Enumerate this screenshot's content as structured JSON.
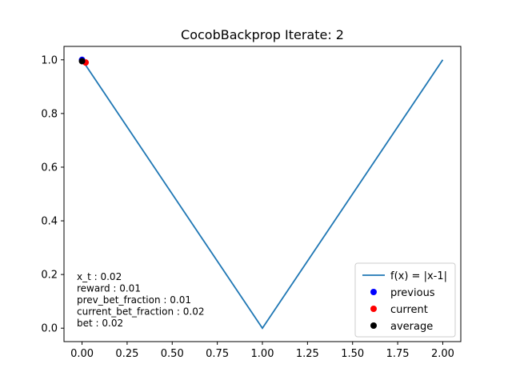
{
  "chart_data": {
    "type": "line",
    "title": "CocobBackprop Iterate: 2",
    "xlabel": "",
    "ylabel": "",
    "xlim": [
      -0.1,
      2.1
    ],
    "ylim": [
      -0.05,
      1.05
    ],
    "x_ticks": [
      "0.00",
      "0.25",
      "0.50",
      "0.75",
      "1.00",
      "1.25",
      "1.50",
      "1.75",
      "2.00"
    ],
    "x_tick_values": [
      0,
      0.25,
      0.5,
      0.75,
      1.0,
      1.25,
      1.5,
      1.75,
      2.0
    ],
    "y_ticks": [
      "0.0",
      "0.2",
      "0.4",
      "0.6",
      "0.8",
      "1.0"
    ],
    "y_tick_values": [
      0,
      0.2,
      0.4,
      0.6,
      0.8,
      1.0
    ],
    "grid": false,
    "legend_position": "lower-right",
    "series": [
      {
        "name": "f(x) = |x-1|",
        "kind": "line",
        "color": "#1f77b4",
        "x": [
          0,
          1,
          2
        ],
        "y": [
          1,
          0,
          1
        ]
      },
      {
        "name": "previous",
        "kind": "point",
        "color": "#0000ff",
        "x": [
          0.0
        ],
        "y": [
          1.0
        ]
      },
      {
        "name": "current",
        "kind": "point",
        "color": "#ff0000",
        "x": [
          0.02
        ],
        "y": [
          0.99
        ]
      },
      {
        "name": "average",
        "kind": "point",
        "color": "#000000",
        "x": [
          0.0
        ],
        "y": [
          0.995
        ]
      }
    ],
    "annotations": [
      "x_t : 0.02",
      "reward : 0.01",
      "prev_bet_fraction : 0.01",
      "current_bet_fraction : 0.02",
      "bet : 0.02"
    ]
  }
}
